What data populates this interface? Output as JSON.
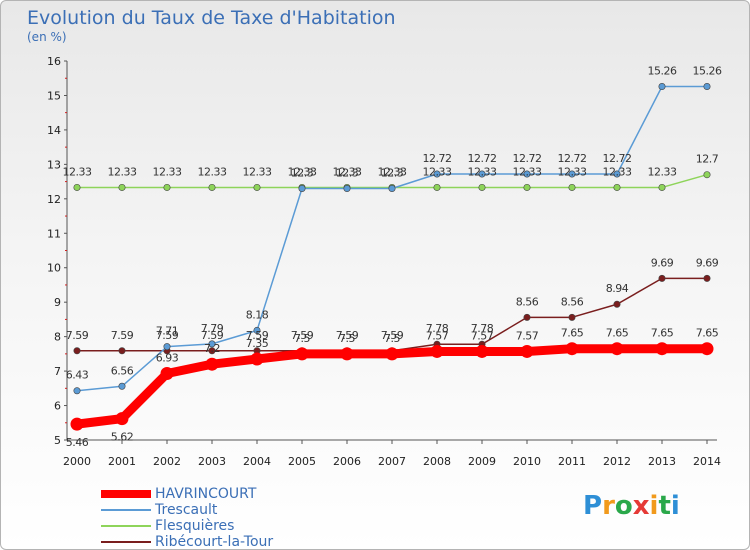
{
  "title": "Evolution du Taux de Taxe d'Habitation",
  "unit_label": "(en %)",
  "logo_text": "Proxiti",
  "chart_data": {
    "type": "line",
    "title": "Evolution du Taux de Taxe d'Habitation",
    "ylabel": "(en %)",
    "xlabel": "",
    "x": [
      "2000",
      "2001",
      "2002",
      "2003",
      "2004",
      "2005",
      "2006",
      "2007",
      "2008",
      "2009",
      "2010",
      "2011",
      "2012",
      "2013",
      "2014"
    ],
    "ylim": [
      5,
      16
    ],
    "yticks": [
      5,
      6,
      7,
      8,
      9,
      10,
      11,
      12,
      13,
      14,
      15,
      16
    ],
    "grid": false,
    "legend_position": "bottom-left",
    "series": [
      {
        "name": "HAVRINCOURT",
        "color": "#ff0000",
        "values": [
          5.46,
          5.62,
          6.93,
          7.2,
          7.35,
          7.5,
          7.5,
          7.5,
          7.57,
          7.57,
          7.57,
          7.65,
          7.65,
          7.65,
          7.65
        ]
      },
      {
        "name": "Trescault",
        "color": "#5b9bd5",
        "values": [
          6.43,
          6.56,
          7.71,
          7.79,
          8.18,
          12.3,
          12.3,
          12.3,
          12.72,
          12.72,
          12.72,
          12.72,
          12.72,
          15.26,
          15.26
        ]
      },
      {
        "name": "Flesquières",
        "color": "#8ed45a",
        "values": [
          12.33,
          12.33,
          12.33,
          12.33,
          12.33,
          12.33,
          12.33,
          12.33,
          12.33,
          12.33,
          12.33,
          12.33,
          12.33,
          12.33,
          12.7
        ]
      },
      {
        "name": "Ribécourt-la-Tour",
        "color": "#7a1e1e",
        "values": [
          7.59,
          7.59,
          7.59,
          7.59,
          7.59,
          7.59,
          7.59,
          7.59,
          7.78,
          7.78,
          8.56,
          8.56,
          8.94,
          9.69,
          9.69
        ]
      }
    ],
    "point_labels": {
      "HAVRINCOURT": [
        "5.46",
        "5.62",
        "6.93",
        "7.2",
        "7.35",
        "7.5",
        "7.5",
        "7.5",
        "7.57",
        "7.57",
        "7.57",
        "7.65",
        "7.65",
        "7.65",
        "7.65"
      ],
      "Trescault": [
        "6.43",
        "6.56",
        "7.71",
        "7.79",
        "8.18",
        "12.3",
        "12.3",
        "12.3",
        "12.72",
        "12.72",
        "12.72",
        "12.72",
        "12.72",
        "15.26",
        "15.26"
      ],
      "Flesquières": [
        "12.33",
        "12.33",
        "12.33",
        "12.33",
        "12.33",
        "12.33",
        "12.33",
        "12.33",
        "12.33",
        "12.33",
        "12.33",
        "12.33",
        "12.33",
        "12.33",
        "12.7"
      ],
      "Ribécourt-la-Tour": [
        "7.59",
        "7.59",
        "7.59",
        "7.59",
        "7.59",
        "7.59",
        "7.59",
        "7.59",
        "7.78",
        "7.78",
        "8.56",
        "8.56",
        "8.94",
        "9.69",
        "9.69"
      ]
    }
  }
}
